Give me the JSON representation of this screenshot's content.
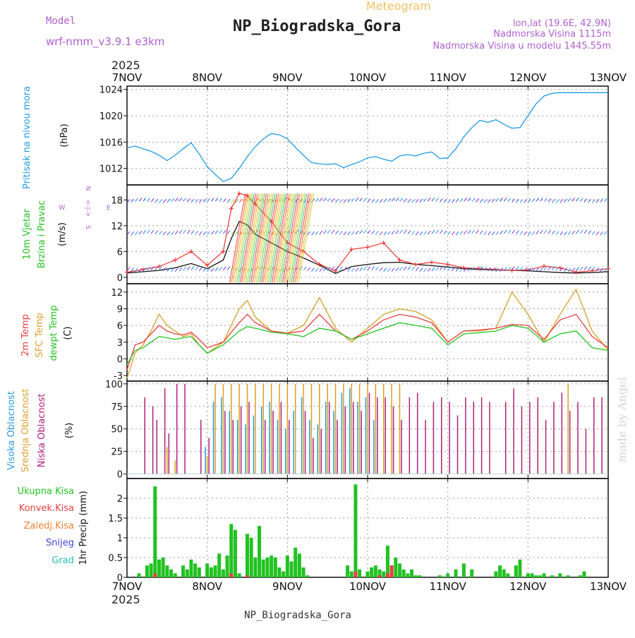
{
  "header": {
    "model_label": "Model",
    "model_name": "wrf-nmm_v3.9.1 e3km",
    "meteogram": "Meteogram",
    "station": "NP_Biogradska_Gora",
    "lonlat": "lon,lat (19.6E, 42.9N)",
    "altitude": "Nadmorska Visina 1115m",
    "model_altitude": "Nadmorska Visina u modelu 1445.55m",
    "year_top": "2025",
    "year_bottom": "2025",
    "footer_station": "NP_Biogradska_Gora",
    "credit": "made by Angel"
  },
  "colors": {
    "pressure": "#1e9be6",
    "wind_speed": "#111111",
    "gust": "#ee3333",
    "t2m": "#e84040",
    "sfc": "#d8a020",
    "dewpt": "#22c222",
    "high_cloud": "#2a9ad8",
    "mid_cloud": "#d8a020",
    "low_cloud": "#b0207a",
    "total_precip": "#22c222",
    "conv_precip": "#e84040",
    "frozen_precip": "#f07f30",
    "snow": "#4444dd",
    "graupel": "#20c0b0",
    "grid": "#999999",
    "title_violet": "#b060d0",
    "left_blue": "#1e9be6",
    "left_green": "#22c222",
    "left_red": "#e84040",
    "left_orange": "#e0a030"
  },
  "chart_data": [
    {
      "type": "line",
      "name": "pressure",
      "ylabel": "Pritisak na nivou mora",
      "unit": "(hPa)",
      "ylim": [
        1009.5,
        1024.5
      ],
      "yticks": [
        1012,
        1016,
        1020,
        1024
      ],
      "x": [
        0,
        0.1,
        0.2,
        0.3,
        0.4,
        0.5,
        0.6,
        0.7,
        0.8,
        0.9,
        1.0,
        1.1,
        1.2,
        1.3,
        1.4,
        1.5,
        1.6,
        1.7,
        1.8,
        1.9,
        2.0,
        2.1,
        2.2,
        2.3,
        2.4,
        2.5,
        2.6,
        2.7,
        2.8,
        2.9,
        3.0,
        3.1,
        3.2,
        3.3,
        3.4,
        3.5,
        3.6,
        3.7,
        3.8,
        3.9,
        4.0,
        4.1,
        4.2,
        4.3,
        4.4,
        4.5,
        4.6,
        4.7,
        4.8,
        4.9,
        5.0,
        5.1,
        5.2,
        5.3,
        5.4,
        5.5,
        5.6,
        5.7,
        5.8,
        5.9,
        6.0
      ],
      "series": [
        {
          "name": "Pritisak",
          "values": [
            1015.1,
            1015.4,
            1015.0,
            1014.6,
            1014.0,
            1013.2,
            1014.0,
            1015.0,
            1015.9,
            1014.2,
            1012.3,
            1011.1,
            1010.0,
            1010.5,
            1012.0,
            1013.8,
            1015.3,
            1016.5,
            1017.3,
            1017.1,
            1016.5,
            1015.2,
            1014.0,
            1012.9,
            1012.7,
            1012.6,
            1012.7,
            1012.1,
            1012.6,
            1013.0,
            1013.6,
            1013.8,
            1013.4,
            1013.1,
            1013.9,
            1014.1,
            1013.9,
            1014.3,
            1014.5,
            1013.5,
            1013.6,
            1015.0,
            1016.8,
            1018.2,
            1019.3,
            1019.0,
            1019.4,
            1018.7,
            1018.1,
            1018.2,
            1020.0,
            1021.8,
            1023.0,
            1023.4,
            1023.5,
            1023.5,
            1023.5,
            1023.5,
            1023.5,
            1023.5,
            1023.5
          ]
        }
      ]
    },
    {
      "type": "line",
      "name": "wind",
      "ylabel_1": "10m Vjetar",
      "ylabel_2": "Brzina i Pravac",
      "unit": "(m/s)",
      "ylim": [
        -1.5,
        21.5
      ],
      "yticks": [
        0,
        6,
        12,
        18
      ],
      "compass": {
        "n": "N",
        "s": "S",
        "e": "E",
        "w": "W",
        "arrows": "<-|->"
      },
      "x": [
        0,
        0.2,
        0.4,
        0.6,
        0.8,
        1.0,
        1.2,
        1.3,
        1.4,
        1.5,
        1.6,
        1.8,
        2.0,
        2.2,
        2.4,
        2.6,
        2.8,
        3.0,
        3.2,
        3.4,
        3.6,
        3.8,
        4.0,
        4.2,
        4.4,
        4.6,
        4.8,
        5.0,
        5.2,
        5.4,
        5.6,
        5.8,
        6.0
      ],
      "series": [
        {
          "name": "speed",
          "values": [
            1.0,
            1.3,
            1.6,
            2.2,
            3.2,
            2.0,
            4.0,
            9.0,
            13.0,
            12.2,
            10.0,
            8.0,
            6.0,
            4.5,
            2.8,
            0.9,
            2.5,
            3.0,
            3.4,
            3.5,
            3.0,
            2.7,
            2.4,
            2.0,
            1.8,
            1.7,
            1.6,
            1.5,
            1.3,
            1.1,
            1.0,
            1.1,
            1.3
          ]
        },
        {
          "name": "gust",
          "values": [
            1.2,
            1.8,
            2.5,
            4.0,
            6.0,
            2.8,
            6.0,
            16.0,
            19.5,
            19.0,
            17.0,
            13.0,
            8.0,
            6.0,
            3.0,
            1.5,
            6.5,
            7.0,
            8.0,
            4.0,
            3.0,
            3.5,
            3.0,
            2.2,
            2.0,
            1.8,
            1.6,
            1.7,
            2.6,
            2.2,
            1.2,
            1.5,
            2.0
          ]
        }
      ]
    },
    {
      "type": "line",
      "name": "temperature",
      "ylabel_1": "2m Temp",
      "ylabel_2": "SFC Temp",
      "ylabel_3": "dewpt Temp",
      "unit": "(C)",
      "ylim": [
        -4,
        13.5
      ],
      "yticks": [
        -3,
        0,
        3,
        6,
        9,
        12
      ],
      "x": [
        0,
        0.1,
        0.2,
        0.3,
        0.4,
        0.5,
        0.6,
        0.7,
        0.8,
        0.9,
        1.0,
        1.2,
        1.4,
        1.5,
        1.6,
        1.8,
        2.0,
        2.2,
        2.4,
        2.6,
        2.8,
        3.0,
        3.2,
        3.4,
        3.6,
        3.8,
        4.0,
        4.2,
        4.4,
        4.6,
        4.8,
        5.0,
        5.2,
        5.4,
        5.6,
        5.8,
        6.0
      ],
      "series": [
        {
          "name": "2m Temp",
          "values": [
            -2.0,
            2.5,
            3.0,
            4.5,
            6.0,
            5.0,
            4.5,
            4.3,
            4.8,
            3.5,
            2.0,
            3.0,
            6.5,
            8.0,
            6.5,
            5.0,
            4.6,
            5.0,
            8.0,
            5.0,
            3.5,
            5.0,
            7.0,
            8.0,
            7.5,
            6.5,
            3.0,
            5.0,
            5.2,
            5.5,
            6.2,
            6.0,
            3.5,
            7.0,
            8.0,
            4.0,
            2.0
          ]
        },
        {
          "name": "SFC Temp",
          "values": [
            -3.5,
            1.0,
            2.5,
            5.0,
            8.0,
            6.0,
            5.0,
            4.0,
            4.5,
            2.5,
            1.0,
            3.0,
            9.0,
            10.5,
            7.5,
            5.0,
            4.6,
            6.0,
            11.0,
            5.5,
            3.0,
            5.5,
            8.0,
            9.0,
            8.5,
            7.0,
            3.0,
            5.0,
            5.0,
            5.5,
            12.0,
            8.0,
            3.0,
            8.0,
            12.5,
            5.0,
            1.5
          ]
        },
        {
          "name": "dewpt Temp",
          "values": [
            -1.0,
            1.5,
            2.0,
            3.0,
            4.0,
            3.8,
            3.5,
            3.8,
            4.0,
            2.5,
            1.0,
            2.5,
            5.0,
            5.8,
            5.5,
            4.8,
            4.5,
            4.0,
            5.5,
            5.0,
            3.5,
            4.5,
            5.5,
            6.5,
            6.0,
            5.5,
            2.5,
            4.5,
            4.7,
            5.0,
            6.0,
            5.5,
            3.0,
            4.5,
            5.0,
            2.0,
            1.5
          ]
        }
      ]
    },
    {
      "type": "bar",
      "name": "cloud",
      "ylabel_1": "Visoka Oblacnost",
      "ylabel_2": "Srednja Oblacnost",
      "ylabel_3": "Niska Oblacnost",
      "unit": "(%)",
      "ylim": [
        -5,
        103
      ],
      "yticks": [
        0,
        25,
        50,
        75,
        100
      ],
      "x": [
        0.2,
        0.3,
        0.35,
        0.45,
        0.5,
        0.6,
        0.7,
        0.8,
        0.9,
        1.0,
        1.1,
        1.2,
        1.3,
        1.4,
        1.5,
        1.6,
        1.7,
        1.8,
        1.9,
        2.0,
        2.1,
        2.2,
        2.3,
        2.4,
        2.5,
        2.6,
        2.7,
        2.8,
        2.9,
        3.0,
        3.1,
        3.2,
        3.3,
        3.4,
        3.5,
        3.6,
        3.7,
        3.8,
        3.9,
        4.0,
        4.1,
        4.2,
        4.3,
        4.4,
        4.5,
        4.6,
        4.7,
        4.8,
        4.9,
        5.0,
        5.1,
        5.2,
        5.3,
        5.4,
        5.5,
        5.6,
        5.7,
        5.8,
        5.9
      ],
      "series": [
        {
          "name": "high",
          "values": [
            0,
            0,
            0,
            0,
            0,
            0,
            0,
            0,
            0,
            30,
            80,
            85,
            70,
            60,
            55,
            65,
            75,
            80,
            60,
            50,
            70,
            85,
            60,
            55,
            80,
            70,
            90,
            95,
            80,
            85,
            60,
            0,
            0,
            0,
            0,
            0,
            0,
            0,
            0,
            0,
            0,
            0,
            0,
            0,
            0,
            0,
            0,
            0,
            0,
            0,
            0,
            0,
            0,
            0,
            0,
            0,
            0,
            0,
            0
          ]
        },
        {
          "name": "mid",
          "values": [
            0,
            0,
            0,
            0,
            30,
            15,
            0,
            0,
            0,
            20,
            100,
            100,
            100,
            100,
            100,
            100,
            100,
            100,
            100,
            100,
            100,
            100,
            100,
            100,
            100,
            100,
            100,
            100,
            100,
            100,
            100,
            100,
            100,
            100,
            0,
            0,
            0,
            0,
            0,
            0,
            0,
            0,
            0,
            0,
            0,
            0,
            0,
            0,
            0,
            0,
            0,
            0,
            0,
            0,
            100,
            0,
            0,
            0,
            0
          ]
        },
        {
          "name": "low",
          "values": [
            85,
            75,
            60,
            95,
            45,
            100,
            100,
            0,
            60,
            40,
            0,
            70,
            60,
            75,
            80,
            0,
            60,
            70,
            80,
            60,
            0,
            70,
            40,
            50,
            80,
            60,
            75,
            80,
            70,
            90,
            85,
            85,
            75,
            60,
            85,
            90,
            60,
            80,
            85,
            80,
            65,
            85,
            80,
            85,
            80,
            0,
            80,
            95,
            75,
            80,
            85,
            60,
            80,
            90,
            70,
            80,
            50,
            85,
            85
          ]
        }
      ]
    },
    {
      "type": "bar",
      "name": "precip",
      "ylabel": "1hr Precip (mm)",
      "legend": [
        "Ukupna Kisa",
        "Konvek.Kisa",
        "Zaledj.Kisa",
        "Snijeg",
        "Grad"
      ],
      "ylim": [
        0,
        2.5
      ],
      "yticks": [
        0,
        0.5,
        1,
        1.5,
        2
      ],
      "ytick_labels": [
        "0",
        "0.5",
        "1",
        "1.5",
        "2"
      ],
      "x": [
        0.15,
        0.25,
        0.3,
        0.35,
        0.4,
        0.45,
        0.5,
        0.55,
        0.6,
        0.7,
        0.75,
        0.8,
        0.85,
        0.9,
        1.0,
        1.05,
        1.1,
        1.15,
        1.2,
        1.25,
        1.3,
        1.35,
        1.4,
        1.5,
        1.55,
        1.6,
        1.65,
        1.7,
        1.75,
        1.8,
        1.85,
        1.9,
        1.95,
        2.0,
        2.05,
        2.1,
        2.15,
        2.2,
        2.25,
        2.75,
        2.8,
        2.85,
        2.9,
        3.0,
        3.05,
        3.1,
        3.15,
        3.2,
        3.25,
        3.3,
        3.35,
        3.4,
        3.45,
        3.5,
        3.55,
        3.6,
        3.65,
        3.9,
        4.0,
        4.1,
        4.2,
        4.3,
        4.6,
        4.65,
        4.7,
        4.75,
        4.85,
        4.9,
        5.0,
        5.05,
        5.1,
        5.15,
        5.2,
        5.3,
        5.4,
        5.5,
        5.65,
        5.7
      ],
      "series": [
        {
          "name": "Ukupna Kisa",
          "values": [
            0.1,
            0.3,
            0.35,
            2.3,
            0.45,
            0.5,
            0.3,
            0.2,
            0.1,
            0.3,
            0.2,
            0.45,
            0.35,
            0.25,
            0.35,
            0.25,
            0.3,
            0.6,
            0.2,
            0.55,
            1.35,
            1.2,
            0.1,
            1.1,
            1.0,
            0.5,
            1.3,
            0.45,
            0.5,
            0.55,
            0.5,
            0.25,
            0.15,
            0.55,
            0.4,
            0.75,
            0.6,
            0.25,
            0.05,
            0.3,
            0.15,
            2.35,
            0.2,
            0.15,
            0.25,
            0.3,
            0.2,
            0.15,
            0.8,
            0.3,
            0.5,
            0.35,
            0.2,
            0.1,
            0.2,
            0.05,
            0.05,
            0.05,
            0.1,
            0.2,
            0.35,
            0.2,
            0.15,
            0.3,
            0.2,
            0.1,
            0.3,
            0.45,
            0.1,
            0.1,
            0.05,
            0.05,
            0.1,
            0.05,
            0.1,
            0.05,
            0.05,
            0.15
          ]
        },
        {
          "name": "Konvek.Kisa",
          "values": [
            0,
            0,
            0,
            0.1,
            0,
            0,
            0,
            0,
            0,
            0,
            0,
            0,
            0,
            0,
            0,
            0,
            0,
            0,
            0,
            0,
            0.1,
            0,
            0,
            0.05,
            0,
            0,
            0,
            0,
            0,
            0,
            0,
            0,
            0,
            0,
            0,
            0,
            0,
            0,
            0,
            0,
            0,
            0.15,
            0,
            0,
            0,
            0,
            0.05,
            0,
            0.1,
            0.3,
            0,
            0,
            0,
            0,
            0,
            0,
            0,
            0,
            0,
            0,
            0,
            0,
            0,
            0,
            0,
            0,
            0,
            0,
            0,
            0,
            0,
            0,
            0,
            0,
            0,
            0,
            0,
            0
          ]
        }
      ]
    }
  ],
  "x_axis": {
    "labels": [
      "7NOV",
      "8NOV",
      "9NOV",
      "10NOV",
      "11NOV",
      "12NOV",
      "13NOV"
    ]
  }
}
